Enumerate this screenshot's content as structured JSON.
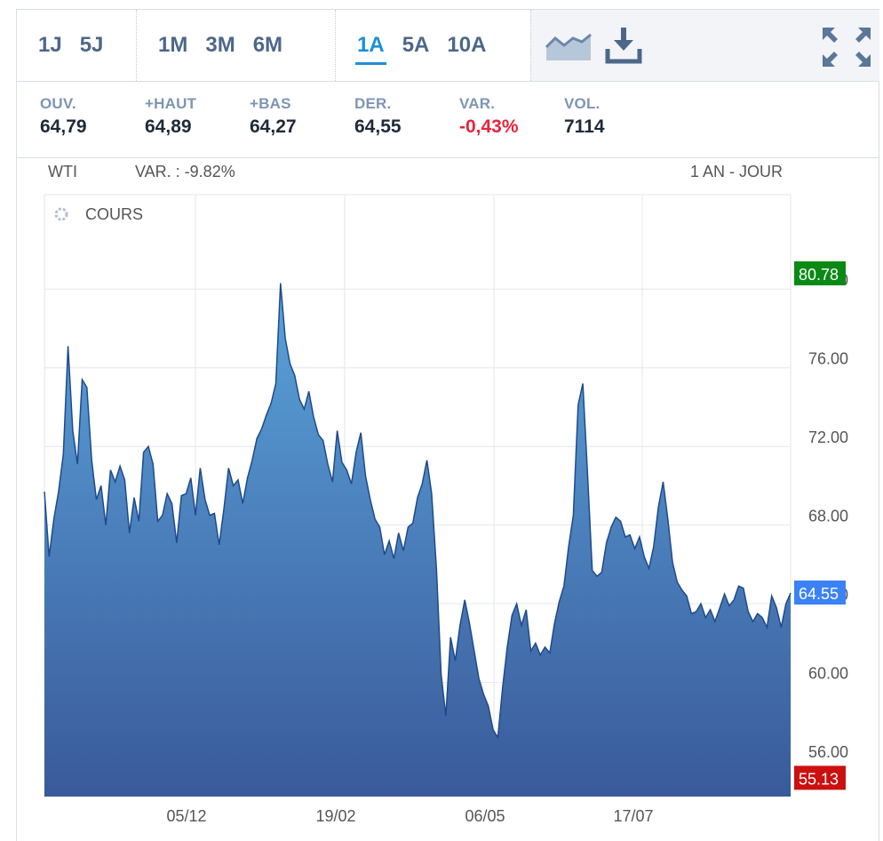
{
  "toolbar": {
    "groups": [
      [
        "1J",
        "5J"
      ],
      [
        "1M",
        "3M",
        "6M"
      ],
      [
        "1A",
        "5A",
        "10A"
      ]
    ],
    "active": "1A",
    "tools": [
      "area-chart-icon",
      "download-icon",
      "expand-icon"
    ]
  },
  "stats": [
    {
      "label": "OUV.",
      "value": "64,79"
    },
    {
      "label": "+HAUT",
      "value": "64,89"
    },
    {
      "label": "+BAS",
      "value": "64,27"
    },
    {
      "label": "DER.",
      "value": "64,55"
    },
    {
      "label": "VAR.",
      "value": "-0,43%",
      "negative": true
    },
    {
      "label": "VOL.",
      "value": "7114"
    }
  ],
  "info": {
    "symbol": "WTI",
    "change": "VAR. : -9.82%",
    "period": "1 AN - JOUR",
    "panel_label": "COURS"
  },
  "colors": {
    "accent": "#1b8fd8",
    "negative": "#e8233a",
    "high_tag": "#0a8a14",
    "low_tag": "#cc1010",
    "last_tag": "#3b82f6",
    "line": "#1f4a8a"
  },
  "chart_data": {
    "type": "area",
    "title": "",
    "xlabel": "",
    "ylabel": "",
    "ylim": [
      54.2,
      84.8
    ],
    "y_ticks": [
      "56.00",
      "60.00",
      "64.00",
      "68.00",
      "72.00",
      "76.00",
      "80.00"
    ],
    "x_ticks": [
      "05/12",
      "19/02",
      "06/05",
      "17/07"
    ],
    "tags": {
      "high": "80.78",
      "last": "64.55",
      "low": "55.13"
    },
    "grid": true,
    "y_axis_side": "right",
    "series": [
      {
        "values": [
          69.7,
          66.4,
          68.3,
          69.7,
          71.6,
          77.1,
          72.8,
          71.1,
          75.4,
          75.0,
          71.3,
          69.3,
          70.0,
          68.0,
          70.8,
          70.2,
          71.0,
          70.3,
          67.6,
          69.4,
          68.2,
          71.7,
          72.0,
          71.1,
          68.2,
          68.5,
          69.6,
          69.1,
          67.1,
          69.5,
          69.6,
          70.4,
          68.5,
          70.9,
          69.3,
          68.5,
          68.6,
          67.0,
          68.8,
          70.9,
          70.0,
          70.3,
          69.1,
          70.4,
          71.3,
          72.4,
          72.9,
          73.6,
          74.2,
          75.2,
          80.3,
          77.5,
          76.2,
          75.6,
          74.4,
          73.9,
          74.8,
          73.5,
          72.6,
          72.3,
          71.1,
          70.2,
          72.8,
          71.2,
          70.8,
          70.1,
          71.7,
          72.7,
          70.5,
          69.3,
          68.3,
          67.9,
          66.5,
          67.2,
          66.3,
          67.6,
          66.7,
          67.9,
          68.1,
          69.4,
          70.1,
          71.3,
          69.6,
          65.8,
          60.4,
          58.3,
          62.3,
          61.1,
          62.9,
          64.2,
          63.0,
          61.6,
          60.2,
          59.4,
          58.8,
          57.6,
          57.2,
          59.7,
          61.8,
          63.4,
          64.0,
          62.9,
          63.7,
          61.6,
          62.0,
          61.4,
          61.8,
          61.5,
          63.0,
          64.1,
          64.9,
          66.9,
          68.5,
          74.1,
          75.2,
          70.6,
          65.7,
          65.4,
          65.6,
          67.1,
          67.9,
          68.4,
          68.2,
          67.4,
          67.5,
          66.8,
          67.4,
          66.4,
          65.8,
          66.9,
          68.9,
          70.2,
          68.3,
          66.1,
          65.1,
          64.7,
          64.4,
          63.5,
          63.6,
          64.0,
          63.3,
          63.7,
          63.1,
          63.8,
          64.5,
          63.9,
          64.2,
          64.9,
          64.8,
          63.6,
          63.1,
          63.5,
          63.3,
          62.8,
          64.4,
          63.8,
          62.8,
          64.0,
          64.55
        ]
      }
    ]
  }
}
